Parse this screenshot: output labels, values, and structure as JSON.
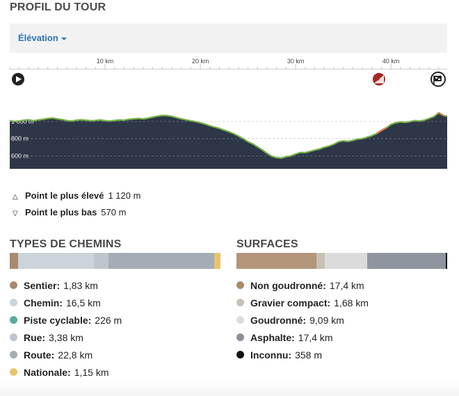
{
  "profile": {
    "title": "PROFIL DU TOUR",
    "dropdown_label": "Élévation"
  },
  "chart_data": {
    "type": "area",
    "x_ticks": [
      "10 km",
      "20 km",
      "30 km",
      "40 km"
    ],
    "y_ticks": [
      "1 000 m",
      "800 m",
      "600 m"
    ],
    "xlim": [
      0,
      45.9
    ],
    "ylim": [
      450,
      1265
    ],
    "points": [
      [
        0,
        1010
      ],
      [
        0.5,
        1000
      ],
      [
        1,
        1005
      ],
      [
        1.5,
        1015
      ],
      [
        2,
        1020
      ],
      [
        2.5,
        1008
      ],
      [
        3,
        1018
      ],
      [
        3.5,
        1025
      ],
      [
        4,
        1035
      ],
      [
        4.5,
        1040
      ],
      [
        5,
        1030
      ],
      [
        5.5,
        1022
      ],
      [
        6,
        1010
      ],
      [
        6.5,
        1005
      ],
      [
        7,
        1015
      ],
      [
        7.5,
        1020
      ],
      [
        8,
        1015
      ],
      [
        8.5,
        1008
      ],
      [
        9,
        1012
      ],
      [
        9.5,
        1018
      ],
      [
        10,
        1010
      ],
      [
        10.5,
        1005
      ],
      [
        11,
        1012
      ],
      [
        11.5,
        1018
      ],
      [
        12,
        1015
      ],
      [
        12.5,
        1025
      ],
      [
        13,
        1030
      ],
      [
        13.5,
        1035
      ],
      [
        14,
        1030
      ],
      [
        14.5,
        1038
      ],
      [
        15,
        1050
      ],
      [
        15.5,
        1062
      ],
      [
        16,
        1070
      ],
      [
        16.5,
        1068
      ],
      [
        17,
        1060
      ],
      [
        17.5,
        1045
      ],
      [
        18,
        1030
      ],
      [
        18.5,
        1020
      ],
      [
        19,
        1008
      ],
      [
        19.5,
        998
      ],
      [
        20,
        985
      ],
      [
        20.5,
        970
      ],
      [
        21,
        950
      ],
      [
        21.5,
        935
      ],
      [
        22,
        920
      ],
      [
        22.5,
        900
      ],
      [
        23,
        880
      ],
      [
        23.5,
        858
      ],
      [
        24,
        830
      ],
      [
        24.5,
        800
      ],
      [
        25,
        765
      ],
      [
        25.5,
        740
      ],
      [
        26,
        705
      ],
      [
        26.5,
        670
      ],
      [
        27,
        630
      ],
      [
        27.5,
        595
      ],
      [
        28,
        580
      ],
      [
        28.5,
        575
      ],
      [
        29,
        590
      ],
      [
        29.5,
        600
      ],
      [
        30,
        622
      ],
      [
        30.5,
        640
      ],
      [
        31,
        638
      ],
      [
        31.5,
        652
      ],
      [
        32,
        668
      ],
      [
        32.5,
        680
      ],
      [
        33,
        700
      ],
      [
        33.5,
        715
      ],
      [
        34,
        735
      ],
      [
        34.5,
        765
      ],
      [
        35,
        775
      ],
      [
        35.5,
        768
      ],
      [
        36,
        780
      ],
      [
        36.5,
        795
      ],
      [
        37,
        800
      ],
      [
        37.5,
        818
      ],
      [
        38,
        835
      ],
      [
        38.5,
        860
      ],
      [
        39,
        895
      ],
      [
        39.5,
        925
      ],
      [
        40,
        965
      ],
      [
        40.5,
        985
      ],
      [
        41,
        995
      ],
      [
        41.5,
        990
      ],
      [
        42,
        998
      ],
      [
        42.5,
        1010
      ],
      [
        43,
        1005
      ],
      [
        43.5,
        1015
      ],
      [
        44,
        1035
      ],
      [
        44.5,
        1055
      ],
      [
        45,
        1100
      ],
      [
        45.5,
        1070
      ],
      [
        45.9,
        1060
      ]
    ],
    "steep_ranges": [
      [
        38.4,
        39.6
      ],
      [
        45.0,
        45.5
      ]
    ]
  },
  "summary": {
    "highest_label": "Point le plus élevé",
    "highest_value": "1 120 m",
    "lowest_label": "Point le plus bas",
    "lowest_value": "570 m"
  },
  "way_types": {
    "title": "TYPES DE CHEMINS",
    "bar": [
      {
        "color": "#a88a6c",
        "fraction": 0.04
      },
      {
        "color": "#ccd4db",
        "fraction": 0.36
      },
      {
        "color": "#bec5cc",
        "fraction": 0.07
      },
      {
        "color": "#a4adb6",
        "fraction": 0.5
      },
      {
        "color": "#eac36e",
        "fraction": 0.03
      }
    ],
    "items": [
      {
        "label": "Sentier:",
        "value": "1,83 km",
        "color": "#a88a6c"
      },
      {
        "label": "Chemin:",
        "value": "16,5 km",
        "color": "#ccd4db"
      },
      {
        "label": "Piste cyclable:",
        "value": "226 m",
        "color": "#58ab9e"
      },
      {
        "label": "Rue:",
        "value": "3,38 km",
        "color": "#bec5cc"
      },
      {
        "label": "Route:",
        "value": "22,8 km",
        "color": "#a4adb6"
      },
      {
        "label": "Nationale:",
        "value": "1,15 km",
        "color": "#eac36e"
      }
    ]
  },
  "surfaces": {
    "title": "SURFACES",
    "bar": [
      {
        "color": "#b39679",
        "fraction": 0.38
      },
      {
        "color": "#c8c0b6",
        "fraction": 0.04
      },
      {
        "color": "#dbdbdb",
        "fraction": 0.2
      },
      {
        "color": "#8f959e",
        "fraction": 0.375
      },
      {
        "color": "#111111",
        "fraction": 0.005
      }
    ],
    "items": [
      {
        "label": "Non goudronné:",
        "value": "17,4 km",
        "color": "#a88a6c"
      },
      {
        "label": "Gravier compact:",
        "value": "1,68 km",
        "color": "#c8c0b6"
      },
      {
        "label": "Goudronné:",
        "value": "9,09 km",
        "color": "#dcdcdc"
      },
      {
        "label": "Asphalte:",
        "value": "17,4 km",
        "color": "#8c919a"
      },
      {
        "label": "Inconnu:",
        "value": "358 m",
        "color": "#111111"
      }
    ]
  }
}
